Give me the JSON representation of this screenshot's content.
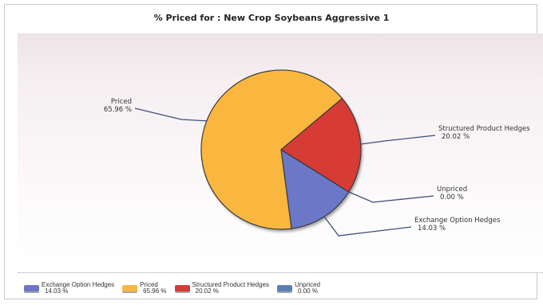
{
  "chart_data": {
    "type": "pie",
    "title": "% Priced for : New Crop Soybeans Aggressive 1",
    "slices": [
      {
        "name": "Exchange Option Hedges",
        "value": 14.03,
        "label": "14.03 %",
        "color": "#6b78c8"
      },
      {
        "name": "Priced",
        "value": 65.96,
        "label": "65.96 %",
        "color": "#f9b73f"
      },
      {
        "name": "Structured Product Hedges",
        "value": 20.02,
        "label": "20.02 %",
        "color": "#d63b35"
      },
      {
        "name": "Unpriced",
        "value": 0.0,
        "label": "0.00 %",
        "color": "#5a7fb6"
      }
    ],
    "legend_position": "bottom"
  }
}
